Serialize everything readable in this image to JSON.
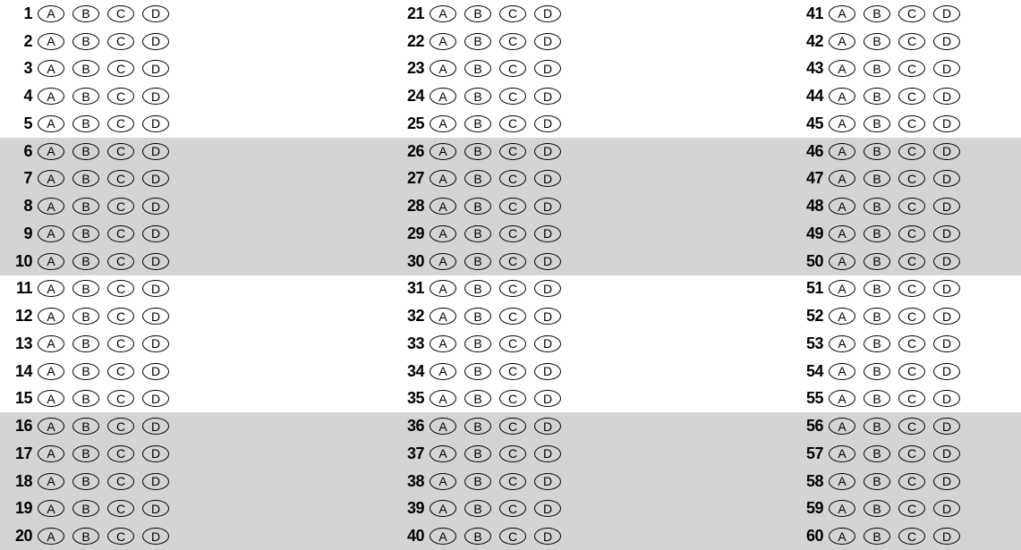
{
  "sheet": {
    "total_questions": 60,
    "options": [
      "A",
      "B",
      "C",
      "D"
    ],
    "columns": 3,
    "rows_per_column": 20,
    "shaded_band_size": 5,
    "background_color": "#ffffff",
    "shaded_color": "#d4d4d4",
    "bubble_border_color": "#000000",
    "text_color": "#000000",
    "column_starts": [
      1,
      21,
      41
    ],
    "questions": [
      {
        "n": 1,
        "shaded": false
      },
      {
        "n": 2,
        "shaded": false
      },
      {
        "n": 3,
        "shaded": false
      },
      {
        "n": 4,
        "shaded": false
      },
      {
        "n": 5,
        "shaded": false
      },
      {
        "n": 6,
        "shaded": true
      },
      {
        "n": 7,
        "shaded": true
      },
      {
        "n": 8,
        "shaded": true
      },
      {
        "n": 9,
        "shaded": true
      },
      {
        "n": 10,
        "shaded": true
      },
      {
        "n": 11,
        "shaded": false
      },
      {
        "n": 12,
        "shaded": false
      },
      {
        "n": 13,
        "shaded": false
      },
      {
        "n": 14,
        "shaded": false
      },
      {
        "n": 15,
        "shaded": false
      },
      {
        "n": 16,
        "shaded": true
      },
      {
        "n": 17,
        "shaded": true
      },
      {
        "n": 18,
        "shaded": true
      },
      {
        "n": 19,
        "shaded": true
      },
      {
        "n": 20,
        "shaded": true
      },
      {
        "n": 21,
        "shaded": false
      },
      {
        "n": 22,
        "shaded": false
      },
      {
        "n": 23,
        "shaded": false
      },
      {
        "n": 24,
        "shaded": false
      },
      {
        "n": 25,
        "shaded": false
      },
      {
        "n": 26,
        "shaded": true
      },
      {
        "n": 27,
        "shaded": true
      },
      {
        "n": 28,
        "shaded": true
      },
      {
        "n": 29,
        "shaded": true
      },
      {
        "n": 30,
        "shaded": true
      },
      {
        "n": 31,
        "shaded": false
      },
      {
        "n": 32,
        "shaded": false
      },
      {
        "n": 33,
        "shaded": false
      },
      {
        "n": 34,
        "shaded": false
      },
      {
        "n": 35,
        "shaded": false
      },
      {
        "n": 36,
        "shaded": true
      },
      {
        "n": 37,
        "shaded": true
      },
      {
        "n": 38,
        "shaded": true
      },
      {
        "n": 39,
        "shaded": true
      },
      {
        "n": 40,
        "shaded": true
      },
      {
        "n": 41,
        "shaded": false
      },
      {
        "n": 42,
        "shaded": false
      },
      {
        "n": 43,
        "shaded": false
      },
      {
        "n": 44,
        "shaded": false
      },
      {
        "n": 45,
        "shaded": false
      },
      {
        "n": 46,
        "shaded": true
      },
      {
        "n": 47,
        "shaded": true
      },
      {
        "n": 48,
        "shaded": true
      },
      {
        "n": 49,
        "shaded": true
      },
      {
        "n": 50,
        "shaded": true
      },
      {
        "n": 51,
        "shaded": false
      },
      {
        "n": 52,
        "shaded": false
      },
      {
        "n": 53,
        "shaded": false
      },
      {
        "n": 54,
        "shaded": false
      },
      {
        "n": 55,
        "shaded": false
      },
      {
        "n": 56,
        "shaded": true
      },
      {
        "n": 57,
        "shaded": true
      },
      {
        "n": 58,
        "shaded": true
      },
      {
        "n": 59,
        "shaded": true
      },
      {
        "n": 60,
        "shaded": true
      }
    ]
  }
}
